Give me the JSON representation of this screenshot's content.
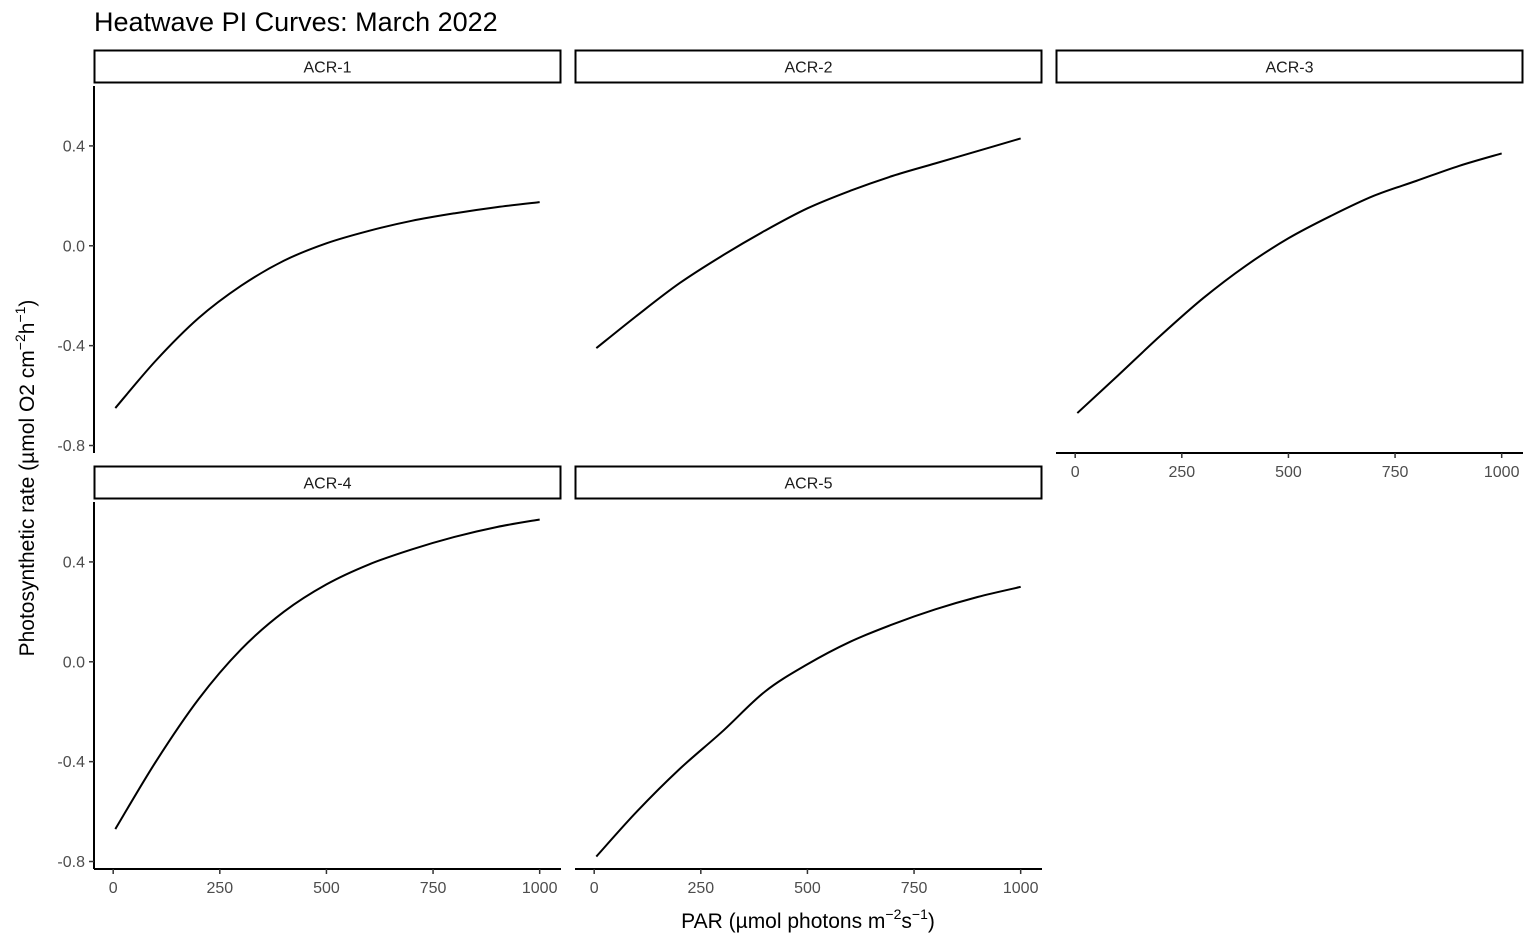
{
  "chart_data": {
    "type": "line",
    "title": "Heatwave PI Curves: March 2022",
    "xlabel": {
      "prefix": "PAR (",
      "mu": "µ",
      "text": "mol photons m",
      "sup1": "−2",
      "mid": "s",
      "sup2": "−1",
      "suffix": ")"
    },
    "ylabel": {
      "prefix": "Photosynthetic rate (",
      "mu": "µ",
      "text": "mol O2 cm",
      "sup1": "−2",
      "mid": "h",
      "sup2": "−1",
      "suffix": ")"
    },
    "xlim": [
      -45,
      1050
    ],
    "ylim": [
      -0.83,
      0.64
    ],
    "x_ticks": [
      0,
      250,
      500,
      750,
      1000
    ],
    "x_tick_labels": [
      "0",
      "250",
      "500",
      "750",
      "1000"
    ],
    "y_ticks": [
      -0.8,
      -0.4,
      0.0,
      0.4
    ],
    "y_tick_labels": [
      "-0.8",
      "-0.4",
      "0.0",
      "0.4"
    ],
    "grid": false,
    "line_color": "#000000",
    "panels": [
      {
        "name": "ACR-1",
        "x": [
          5,
          100,
          200,
          300,
          400,
          500,
          600,
          700,
          800,
          900,
          1000
        ],
        "y": [
          -0.65,
          -0.46,
          -0.29,
          -0.16,
          -0.06,
          0.01,
          0.06,
          0.1,
          0.13,
          0.155,
          0.175
        ]
      },
      {
        "name": "ACR-2",
        "x": [
          5,
          100,
          200,
          300,
          400,
          500,
          600,
          700,
          800,
          900,
          1000
        ],
        "y": [
          -0.41,
          -0.28,
          -0.15,
          -0.04,
          0.06,
          0.15,
          0.22,
          0.28,
          0.33,
          0.38,
          0.43
        ]
      },
      {
        "name": "ACR-3",
        "x": [
          5,
          100,
          200,
          300,
          400,
          500,
          600,
          700,
          800,
          900,
          1000
        ],
        "y": [
          -0.67,
          -0.52,
          -0.36,
          -0.21,
          -0.08,
          0.03,
          0.12,
          0.2,
          0.26,
          0.32,
          0.37
        ]
      },
      {
        "name": "ACR-4",
        "x": [
          5,
          100,
          200,
          300,
          400,
          500,
          600,
          700,
          800,
          900,
          1000
        ],
        "y": [
          -0.67,
          -0.4,
          -0.15,
          0.05,
          0.2,
          0.31,
          0.39,
          0.45,
          0.5,
          0.54,
          0.57
        ]
      },
      {
        "name": "ACR-5",
        "x": [
          5,
          100,
          200,
          300,
          400,
          500,
          600,
          700,
          800,
          900,
          1000
        ],
        "y": [
          -0.78,
          -0.6,
          -0.43,
          -0.28,
          -0.12,
          -0.01,
          0.08,
          0.15,
          0.21,
          0.26,
          0.3
        ]
      }
    ]
  }
}
